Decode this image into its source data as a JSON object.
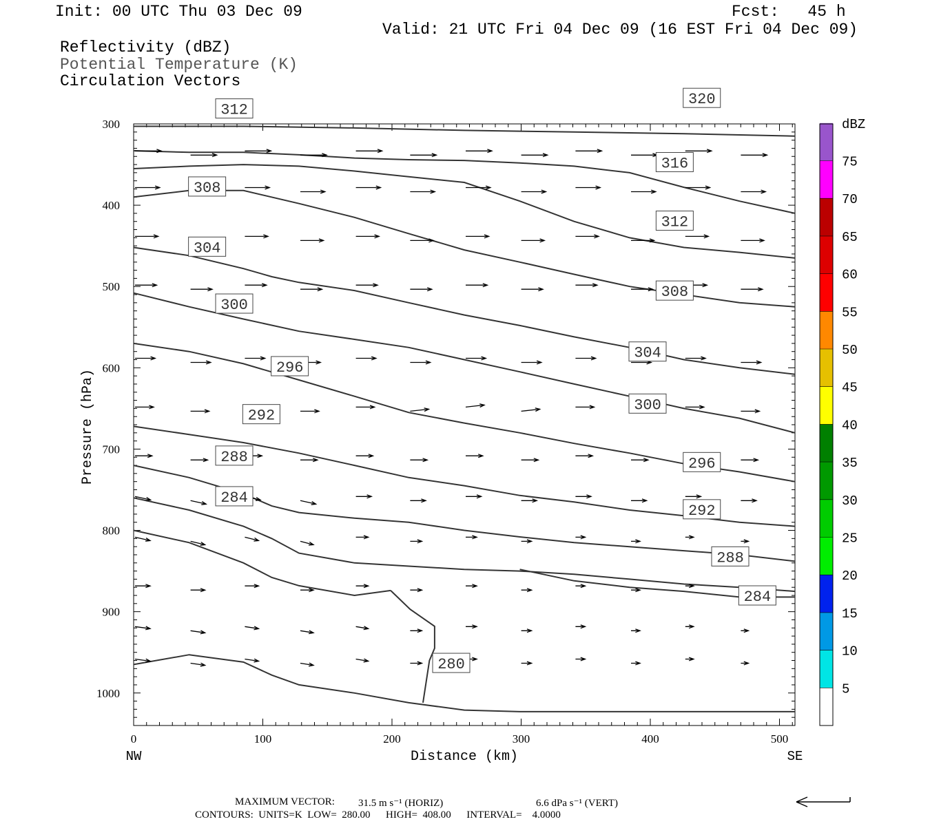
{
  "header": {
    "init": "Init: 00 UTC Thu 03 Dec 09",
    "fcst": "Fcst:   45 h",
    "valid": "Valid: 21 UTC Fri 04 Dec 09 (16 EST Fri 04 Dec 09)",
    "field1": "Reflectivity (dBZ)",
    "field2": "Potential Temperature (K)",
    "field3": "Circulation Vectors"
  },
  "colors": {
    "contour": "#333333",
    "label_field2": "#555555",
    "dbz_scale": [
      "#00e5e5",
      "#0099e5",
      "#0022ee",
      "#00ee00",
      "#00cc00",
      "#009900",
      "#008000",
      "#ffff00",
      "#e6c000",
      "#ff8800",
      "#ff0000",
      "#dd0000",
      "#bb0000",
      "#ff00ff",
      "#9955cc"
    ]
  },
  "colorbar": {
    "title": "dBZ",
    "labels": [
      "5",
      "10",
      "15",
      "20",
      "25",
      "30",
      "35",
      "40",
      "45",
      "50",
      "55",
      "60",
      "65",
      "70",
      "75"
    ]
  },
  "footer": {
    "max_vector_label": "MAXIMUM VECTOR:",
    "max_vector_horiz": "31.5 m s⁻¹ (HORIZ)",
    "max_vector_vert": "6.6 dPa s⁻¹ (VERT)",
    "contours_line": "CONTOURS:  UNITS=K  LOW=  280.00      HIGH=  408.00      INTERVAL=    4.0000"
  },
  "chart_data": {
    "type": "line",
    "title": "",
    "xlabel": "Distance (km)",
    "ylabel": "Pressure (hPa)",
    "xlim": [
      0,
      512
    ],
    "ylim": [
      1040,
      300
    ],
    "x_ticks": [
      "0",
      "100",
      "200",
      "300",
      "400",
      "500"
    ],
    "x_tick_values": [
      0,
      100,
      200,
      300,
      400,
      500
    ],
    "y_ticks": [
      "300",
      "400",
      "500",
      "600",
      "700",
      "800",
      "900",
      "1000"
    ],
    "y_tick_values": [
      300,
      400,
      500,
      600,
      700,
      800,
      900,
      1000
    ],
    "x_end_labels": {
      "left": "NW",
      "right": "SE"
    },
    "series": [
      {
        "name": "280",
        "label_at": [
          232,
          963
        ],
        "points": [
          [
            0,
            965
          ],
          [
            43,
            953
          ],
          [
            85,
            962
          ],
          [
            107,
            978
          ],
          [
            128,
            990
          ],
          [
            171,
            1000
          ],
          [
            213,
            1012
          ],
          [
            256,
            1021
          ],
          [
            299,
            1023
          ],
          [
            512,
            1023
          ]
        ],
        "extra": [
          [
            224,
            1012
          ],
          [
            229,
            960
          ],
          [
            233,
            945
          ],
          [
            233,
            918
          ],
          [
            214,
            897
          ],
          [
            199,
            874
          ]
        ]
      },
      {
        "name": "284",
        "label_at": [
          64,
          758
        ],
        "points": [
          [
            0,
            800
          ],
          [
            43,
            815
          ],
          [
            85,
            840
          ],
          [
            107,
            858
          ],
          [
            128,
            868
          ],
          [
            171,
            880
          ],
          [
            199,
            874
          ]
        ],
        "extra": [
          [
            299,
            848
          ],
          [
            341,
            862
          ],
          [
            384,
            870
          ],
          [
            426,
            875
          ],
          [
            469,
            882
          ],
          [
            512,
            882
          ]
        ]
      },
      {
        "name": "284b",
        "label_at": [
          469,
          880
        ],
        "points": []
      },
      {
        "name": "288",
        "label_at": [
          64,
          708
        ],
        "points": [
          [
            0,
            760
          ],
          [
            43,
            775
          ],
          [
            85,
            795
          ],
          [
            107,
            810
          ],
          [
            128,
            828
          ],
          [
            171,
            840
          ],
          [
            213,
            844
          ],
          [
            256,
            848
          ],
          [
            299,
            850
          ],
          [
            341,
            854
          ],
          [
            384,
            860
          ],
          [
            426,
            866
          ],
          [
            469,
            870
          ],
          [
            512,
            875
          ]
        ]
      },
      {
        "name": "288b",
        "label_at": [
          448,
          832
        ],
        "points": []
      },
      {
        "name": "292",
        "label_at": [
          85,
          657
        ],
        "points": [
          [
            0,
            720
          ],
          [
            43,
            735
          ],
          [
            85,
            755
          ],
          [
            107,
            770
          ],
          [
            128,
            778
          ],
          [
            171,
            785
          ],
          [
            213,
            790
          ],
          [
            256,
            800
          ],
          [
            299,
            808
          ],
          [
            341,
            815
          ],
          [
            384,
            820
          ],
          [
            426,
            825
          ],
          [
            469,
            830
          ],
          [
            512,
            838
          ]
        ]
      },
      {
        "name": "292b",
        "label_at": [
          426,
          774
        ],
        "points": []
      },
      {
        "name": "296",
        "label_at": [
          107,
          598
        ],
        "points": [
          [
            0,
            672
          ],
          [
            43,
            682
          ],
          [
            85,
            692
          ],
          [
            128,
            705
          ],
          [
            171,
            720
          ],
          [
            213,
            735
          ],
          [
            256,
            745
          ],
          [
            299,
            757
          ],
          [
            341,
            765
          ],
          [
            384,
            775
          ],
          [
            426,
            782
          ],
          [
            469,
            790
          ],
          [
            512,
            795
          ]
        ]
      },
      {
        "name": "296b",
        "label_at": [
          426,
          716
        ],
        "points": []
      },
      {
        "name": "300",
        "label_at": [
          64,
          521
        ],
        "points": [
          [
            0,
            570
          ],
          [
            43,
            580
          ],
          [
            85,
            595
          ],
          [
            128,
            615
          ],
          [
            171,
            635
          ],
          [
            213,
            655
          ],
          [
            256,
            668
          ],
          [
            299,
            680
          ],
          [
            341,
            693
          ],
          [
            384,
            705
          ],
          [
            426,
            718
          ],
          [
            469,
            728
          ],
          [
            512,
            740
          ]
        ]
      },
      {
        "name": "300b",
        "label_at": [
          384,
          644
        ],
        "points": []
      },
      {
        "name": "304",
        "label_at": [
          43,
          451
        ],
        "points": [
          [
            0,
            508
          ],
          [
            43,
            525
          ],
          [
            85,
            540
          ],
          [
            128,
            555
          ],
          [
            171,
            565
          ],
          [
            213,
            575
          ],
          [
            256,
            590
          ],
          [
            299,
            605
          ],
          [
            341,
            620
          ],
          [
            384,
            635
          ],
          [
            426,
            650
          ],
          [
            469,
            662
          ],
          [
            512,
            680
          ]
        ]
      },
      {
        "name": "304b",
        "label_at": [
          384,
          580
        ],
        "points": []
      },
      {
        "name": "308",
        "label_at": [
          43,
          377
        ],
        "points": [
          [
            0,
            452
          ],
          [
            43,
            462
          ],
          [
            85,
            478
          ],
          [
            107,
            488
          ],
          [
            128,
            495
          ],
          [
            171,
            505
          ],
          [
            213,
            520
          ],
          [
            256,
            535
          ],
          [
            299,
            548
          ],
          [
            341,
            562
          ],
          [
            384,
            575
          ],
          [
            426,
            590
          ],
          [
            469,
            600
          ],
          [
            512,
            608
          ]
        ]
      },
      {
        "name": "308b",
        "label_at": [
          405,
          505
        ],
        "points": []
      },
      {
        "name": "312",
        "label_at": [
          64,
          281
        ],
        "points": [
          [
            0,
            390
          ],
          [
            43,
            382
          ],
          [
            85,
            382
          ],
          [
            128,
            398
          ],
          [
            171,
            415
          ],
          [
            213,
            435
          ],
          [
            256,
            455
          ],
          [
            299,
            470
          ],
          [
            341,
            485
          ],
          [
            384,
            500
          ],
          [
            426,
            510
          ],
          [
            469,
            520
          ],
          [
            512,
            525
          ]
        ]
      },
      {
        "name": "312b",
        "label_at": [
          405,
          419
        ],
        "points": []
      },
      {
        "name": "316",
        "label_at": [
          405,
          347
        ],
        "points": [
          [
            0,
            355
          ],
          [
            43,
            352
          ],
          [
            85,
            350
          ],
          [
            128,
            352
          ],
          [
            171,
            358
          ],
          [
            213,
            365
          ],
          [
            256,
            372
          ],
          [
            299,
            395
          ],
          [
            341,
            420
          ],
          [
            384,
            440
          ],
          [
            426,
            452
          ],
          [
            469,
            458
          ],
          [
            512,
            465
          ]
        ]
      },
      {
        "name": "320",
        "label_at": [
          426,
          268
        ],
        "points": [
          [
            0,
            333
          ],
          [
            43,
            335
          ],
          [
            85,
            335
          ],
          [
            128,
            338
          ],
          [
            171,
            342
          ],
          [
            213,
            344
          ],
          [
            256,
            345
          ],
          [
            299,
            348
          ],
          [
            341,
            352
          ],
          [
            384,
            360
          ],
          [
            426,
            378
          ],
          [
            469,
            395
          ],
          [
            512,
            410
          ]
        ]
      },
      {
        "name": "top",
        "label_at": null,
        "points": [
          [
            0,
            303
          ],
          [
            85,
            303
          ],
          [
            171,
            305
          ],
          [
            256,
            308
          ],
          [
            341,
            310
          ],
          [
            426,
            312
          ],
          [
            512,
            315
          ]
        ]
      }
    ],
    "vectors_note": "circulation vectors (horizontal wind, vertical motion) drawn as arrows on grid"
  }
}
